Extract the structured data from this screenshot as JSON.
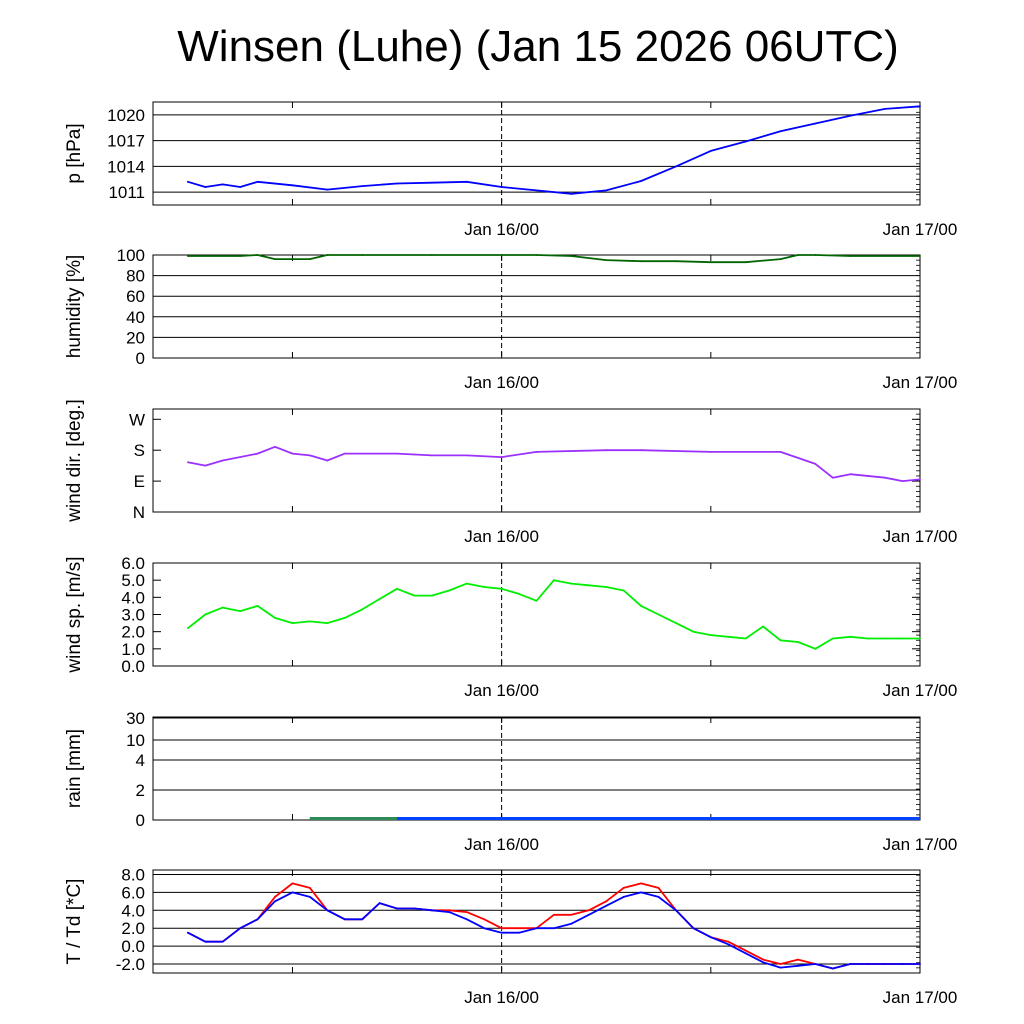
{
  "title": "Winsen (Luhe) (Jan 15 2026 06UTC)",
  "x_tick_labels": [
    "Jan 16/00",
    "Jan 17/00"
  ],
  "chart_data": [
    {
      "type": "line",
      "ylabel": "p [hPa]",
      "ylim": [
        1009.5,
        1021.5
      ],
      "yticks": [
        1011,
        1014,
        1017,
        1020
      ],
      "tick_labels": [
        "1011",
        "1014",
        "1017",
        "1020"
      ],
      "grid": true,
      "x_hours": [
        0,
        1,
        2,
        3,
        4,
        6,
        8,
        10,
        12,
        14,
        16,
        18,
        20,
        22,
        24,
        26,
        28,
        30,
        32,
        34,
        36,
        38,
        40,
        42
      ],
      "series": [
        {
          "color": "#0000ff",
          "values": [
            1012.2,
            1011.6,
            1011.9,
            1011.6,
            1012.2,
            1011.8,
            1011.3,
            1011.7,
            1012.0,
            1012.1,
            1012.2,
            1011.6,
            1011.2,
            1010.8,
            1011.2,
            1012.3,
            1014.0,
            1015.8,
            1016.9,
            1018.1,
            1019.0,
            1019.9,
            1020.7,
            1021.0
          ]
        }
      ]
    },
    {
      "type": "line",
      "ylabel": "humidity [%]",
      "ylim": [
        0,
        100
      ],
      "yticks": [
        0,
        20,
        40,
        60,
        80,
        100
      ],
      "tick_labels": [
        "0",
        "20",
        "40",
        "60",
        "80",
        "100"
      ],
      "grid": true,
      "x_hours": [
        0,
        3,
        4,
        5,
        7,
        8,
        10,
        14,
        18,
        20,
        22,
        24,
        26,
        28,
        30,
        32,
        34,
        35,
        36,
        38,
        42
      ],
      "series": [
        {
          "color": "#006400",
          "values": [
            99,
            99,
            100,
            96,
            96,
            100,
            100,
            100,
            100,
            100,
            99,
            95,
            94,
            94,
            93,
            93,
            96,
            100,
            100,
            99,
            99
          ]
        }
      ]
    },
    {
      "type": "line",
      "ylabel": "wind dir. [deg.]",
      "ylim": [
        0,
        300
      ],
      "yticks": [
        0,
        90,
        180,
        270
      ],
      "tick_labels": [
        "N",
        "E",
        "S",
        "W"
      ],
      "grid": false,
      "x_hours": [
        0,
        1,
        2,
        4,
        5,
        6,
        7,
        8,
        9,
        12,
        14,
        16,
        18,
        20,
        24,
        26,
        30,
        34,
        36,
        37,
        38,
        40,
        41,
        42
      ],
      "series": [
        {
          "color": "#9b30ff",
          "values": [
            145,
            135,
            150,
            170,
            190,
            170,
            165,
            150,
            170,
            170,
            165,
            165,
            160,
            175,
            180,
            180,
            175,
            175,
            140,
            100,
            110,
            100,
            90,
            95
          ]
        }
      ]
    },
    {
      "type": "line",
      "ylabel": "wind sp. [m/s]",
      "ylim": [
        0,
        6
      ],
      "yticks": [
        0,
        1,
        2,
        3,
        4,
        5,
        6
      ],
      "tick_labels": [
        "0.0",
        "1.0",
        "2.0",
        "3.0",
        "4.0",
        "5.0",
        "6.0"
      ],
      "grid": false,
      "x_hours": [
        0,
        1,
        2,
        3,
        4,
        5,
        6,
        7,
        8,
        9,
        10,
        11,
        12,
        13,
        14,
        15,
        16,
        17,
        18,
        19,
        20,
        21,
        22,
        23,
        24,
        25,
        26,
        27,
        28,
        29,
        30,
        31,
        32,
        33,
        34,
        35,
        36,
        37,
        38,
        39,
        40,
        41,
        42
      ],
      "series": [
        {
          "color": "#00ee00",
          "values": [
            2.2,
            3.0,
            3.4,
            3.2,
            3.5,
            2.8,
            2.5,
            2.6,
            2.5,
            2.8,
            3.3,
            3.9,
            4.5,
            4.1,
            4.1,
            4.4,
            4.8,
            4.6,
            4.5,
            4.2,
            3.8,
            5.0,
            4.8,
            4.7,
            4.6,
            4.4,
            3.5,
            3.0,
            2.5,
            2.0,
            1.8,
            1.7,
            1.6,
            2.3,
            1.5,
            1.4,
            1.0,
            1.6,
            1.7,
            1.6,
            1.6,
            1.6,
            1.6
          ]
        }
      ]
    },
    {
      "type": "bar",
      "ylabel": "rain [mm]",
      "ylim": [
        0,
        30
      ],
      "yticks": [
        0,
        2,
        4,
        10,
        30
      ],
      "tick_labels": [
        "0",
        "2",
        "4",
        "10",
        "30"
      ],
      "grid": true,
      "x_hours": [
        0,
        4,
        7,
        42
      ],
      "series": [
        {
          "name": "rain",
          "color": "#0044ff",
          "values": [
            0,
            0,
            0,
            0
          ]
        }
      ]
    },
    {
      "type": "line",
      "ylabel": "T / Td [*C]",
      "ylim": [
        -3,
        8.5
      ],
      "yticks": [
        -2,
        0,
        2,
        4,
        6,
        8
      ],
      "tick_labels": [
        "-2.0",
        "0.0",
        "2.0",
        "4.0",
        "6.0",
        "8.0"
      ],
      "grid": true,
      "x_hours": [
        0,
        1,
        2,
        3,
        4,
        5,
        6,
        7,
        8,
        9,
        10,
        11,
        12,
        13,
        14,
        15,
        16,
        17,
        18,
        19,
        20,
        21,
        22,
        23,
        24,
        25,
        26,
        27,
        28,
        29,
        30,
        31,
        32,
        33,
        34,
        35,
        36,
        37,
        38,
        39,
        40,
        41,
        42
      ],
      "series": [
        {
          "name": "T",
          "color": "#ff0000",
          "values": [
            1.5,
            0.5,
            0.5,
            2.0,
            3.0,
            5.5,
            7.0,
            6.5,
            4.0,
            3.0,
            3.0,
            4.8,
            4.2,
            4.2,
            4.0,
            4.0,
            3.8,
            3.0,
            2.0,
            2.0,
            2.0,
            3.5,
            3.5,
            4.0,
            5.0,
            6.5,
            7.0,
            6.5,
            4.0,
            2.0,
            1.0,
            0.5,
            -0.5,
            -1.5,
            -2.0,
            -1.5,
            -2.0,
            -2.5,
            -2.0,
            -2.0,
            -2.0,
            -2.0,
            -2.0
          ]
        },
        {
          "name": "Td",
          "color": "#0000ff",
          "values": [
            1.5,
            0.5,
            0.5,
            2.0,
            3.0,
            5.0,
            6.0,
            5.5,
            4.0,
            3.0,
            3.0,
            4.8,
            4.2,
            4.2,
            4.0,
            3.8,
            3.0,
            2.0,
            1.5,
            1.5,
            2.0,
            2.0,
            2.5,
            3.5,
            4.5,
            5.5,
            6.0,
            5.5,
            4.0,
            2.0,
            1.0,
            0.2,
            -0.8,
            -1.8,
            -2.4,
            -2.2,
            -2.0,
            -2.5,
            -2.0,
            -2.0,
            -2.0,
            -2.0,
            -2.0
          ]
        }
      ]
    }
  ]
}
